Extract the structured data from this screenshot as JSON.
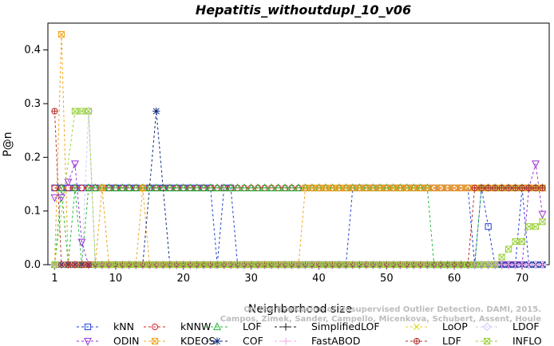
{
  "chart_data": {
    "type": "line",
    "title": "Hepatitis_withoutdupl_10_v06",
    "xlabel": "Neighborhood size",
    "ylabel": "P@n",
    "xlim": [
      0,
      74
    ],
    "ylim": [
      0,
      0.45
    ],
    "xticks": [
      1,
      10,
      20,
      30,
      40,
      50,
      60,
      70
    ],
    "yticks": [
      0.0,
      0.1,
      0.2,
      0.3,
      0.4
    ],
    "grid": false,
    "legend_position": "bottom",
    "watermark_lines": [
      "Campos, Zimek, Sander, Campello, Micenkova, Schubert, Assent, Houle",
      "On the Evaluation of Unsupervised Outlier Detection. DAMI, 2015."
    ],
    "series": [
      {
        "name": "kNN",
        "color": "#1f3fd1",
        "marker": "square",
        "dash": "3,3",
        "points": [
          [
            1,
            0.143
          ],
          [
            2,
            0.143
          ],
          [
            3,
            0.143
          ],
          [
            4,
            0.143
          ],
          [
            5,
            0.143
          ],
          [
            6,
            0.143
          ],
          [
            7,
            0.143
          ],
          [
            8,
            0.143
          ],
          [
            24,
            0.143
          ],
          [
            25,
            0.0
          ],
          [
            26,
            0.143
          ],
          [
            27,
            0.143
          ],
          [
            28,
            0.0
          ],
          [
            44,
            0.0
          ],
          [
            45,
            0.143
          ],
          [
            46,
            0.143
          ],
          [
            62,
            0.143
          ],
          [
            63,
            0.0
          ],
          [
            64,
            0.143
          ],
          [
            65,
            0.071
          ],
          [
            66,
            0.0
          ],
          [
            69,
            0.0
          ],
          [
            70,
            0.143
          ],
          [
            71,
            0.0
          ],
          [
            73,
            0.0
          ]
        ]
      },
      {
        "name": "kNNW",
        "color": "#d12020",
        "marker": "circle",
        "dash": "3,3",
        "points": [
          [
            1,
            0.143
          ],
          [
            8,
            0.143
          ],
          [
            30,
            0.143
          ],
          [
            50,
            0.143
          ],
          [
            60,
            0.143
          ],
          [
            73,
            0.143
          ]
        ]
      },
      {
        "name": "LOF",
        "color": "#22b83a",
        "marker": "triangle-up",
        "dash": "3,3",
        "points": [
          [
            1,
            0.0
          ],
          [
            2,
            0.143
          ],
          [
            3,
            0.0
          ],
          [
            4,
            0.143
          ],
          [
            5,
            0.0
          ],
          [
            6,
            0.143
          ],
          [
            10,
            0.143
          ],
          [
            56,
            0.143
          ],
          [
            57,
            0.0
          ],
          [
            58,
            0.0
          ],
          [
            63,
            0.0
          ],
          [
            64,
            0.143
          ],
          [
            73,
            0.143
          ]
        ]
      },
      {
        "name": "SimplifiedLOF",
        "color": "#111111",
        "marker": "plus",
        "dash": "3,3",
        "points": [
          [
            1,
            0.0
          ],
          [
            10,
            0.0
          ],
          [
            20,
            0.0
          ],
          [
            30,
            0.0
          ],
          [
            40,
            0.0
          ],
          [
            50,
            0.0
          ],
          [
            60,
            0.0
          ],
          [
            73,
            0.0
          ]
        ]
      },
      {
        "name": "LoOP",
        "color": "#e3d41a",
        "marker": "x",
        "dash": "3,3",
        "points": [
          [
            1,
            0.0
          ],
          [
            10,
            0.0
          ],
          [
            20,
            0.0
          ],
          [
            30,
            0.0
          ],
          [
            40,
            0.0
          ],
          [
            50,
            0.0
          ],
          [
            60,
            0.0
          ],
          [
            73,
            0.0
          ]
        ]
      },
      {
        "name": "LDOF",
        "color": "#c9c7ff",
        "marker": "diamond",
        "dash": "3,3",
        "points": [
          [
            1,
            0.0
          ],
          [
            5,
            0.0
          ],
          [
            6,
            0.286
          ],
          [
            7,
            0.0
          ],
          [
            73,
            0.0
          ]
        ]
      },
      {
        "name": "ODIN",
        "color": "#9a2fd6",
        "marker": "triangle-down",
        "dash": "3,3",
        "points": [
          [
            1,
            0.125
          ],
          [
            2,
            0.125
          ],
          [
            3,
            0.154
          ],
          [
            4,
            0.188
          ],
          [
            5,
            0.042
          ],
          [
            6,
            0.0
          ],
          [
            70,
            0.0
          ],
          [
            71,
            0.143
          ],
          [
            72,
            0.188
          ],
          [
            73,
            0.094
          ]
        ]
      },
      {
        "name": "KDEOS",
        "color": "#f0a41a",
        "marker": "boxed-x",
        "dash": "3,3",
        "points": [
          [
            1,
            0.0
          ],
          [
            2,
            0.429
          ],
          [
            3,
            0.0
          ],
          [
            7,
            0.0
          ],
          [
            8,
            0.143
          ],
          [
            9,
            0.0
          ],
          [
            13,
            0.0
          ],
          [
            14,
            0.143
          ],
          [
            15,
            0.0
          ],
          [
            37,
            0.0
          ],
          [
            38,
            0.143
          ],
          [
            73,
            0.143
          ]
        ]
      },
      {
        "name": "COF",
        "color": "#0d2a80",
        "marker": "star",
        "dash": "3,3",
        "points": [
          [
            1,
            0.0
          ],
          [
            14,
            0.0
          ],
          [
            16,
            0.286
          ],
          [
            18,
            0.0
          ],
          [
            73,
            0.0
          ]
        ]
      },
      {
        "name": "FastABOD",
        "color": "#f3a7ee",
        "marker": "plus",
        "dash": "3,3",
        "points": [
          [
            1,
            0.0
          ],
          [
            73,
            0.0
          ]
        ]
      },
      {
        "name": "LDF",
        "color": "#b02a2a",
        "marker": "circle-plus",
        "dash": "3,3",
        "points": [
          [
            1,
            0.286
          ],
          [
            2,
            0.0
          ],
          [
            62,
            0.0
          ],
          [
            63,
            0.143
          ],
          [
            73,
            0.143
          ]
        ]
      },
      {
        "name": "INFLO",
        "color": "#9ad13a",
        "marker": "boxed-x",
        "dash": "3,3",
        "points": [
          [
            1,
            0.0
          ],
          [
            4,
            0.286
          ],
          [
            5,
            0.286
          ],
          [
            6,
            0.286
          ],
          [
            7,
            0.0
          ],
          [
            65,
            0.0
          ],
          [
            66,
            0.0
          ],
          [
            67,
            0.014
          ],
          [
            68,
            0.029
          ],
          [
            69,
            0.043
          ],
          [
            70,
            0.043
          ],
          [
            71,
            0.071
          ],
          [
            72,
            0.071
          ],
          [
            73,
            0.08
          ]
        ]
      }
    ]
  }
}
